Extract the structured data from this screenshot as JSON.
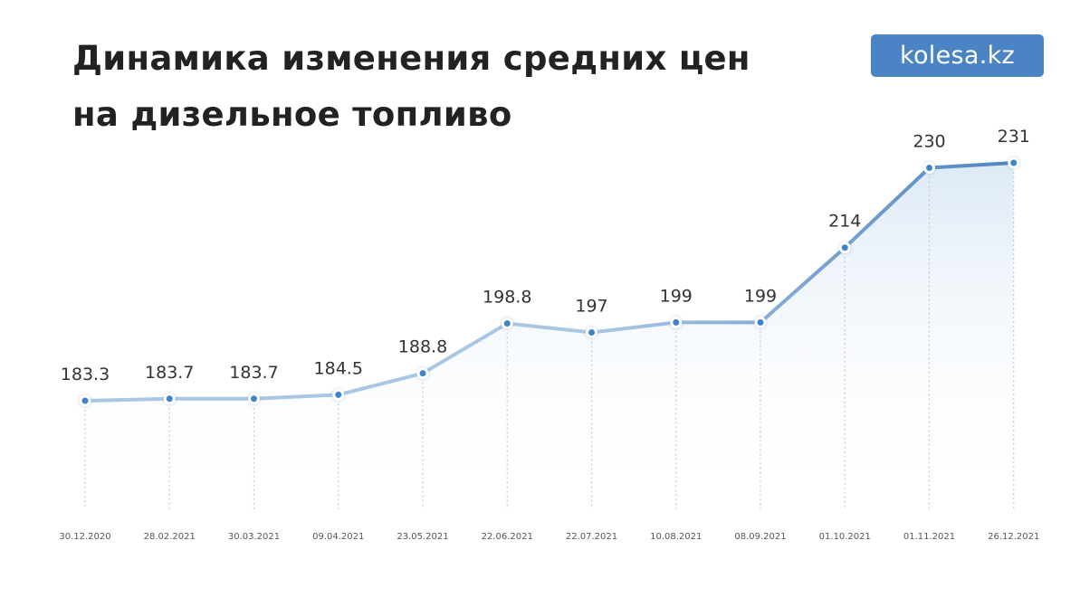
{
  "header": {
    "title_line1": "Динамика изменения средних цен",
    "title_line2": "на дизельное топливо",
    "logo_text": "kolesa.kz"
  },
  "colors": {
    "line_light": "#a9c7e4",
    "line_dark": "#4f86c1",
    "point_fill": "#3d85c6",
    "area_top": "#d9e7f5",
    "logo_bg": "#4a84c4"
  },
  "chart_data": {
    "type": "line",
    "title": "Динамика изменения средних цен на дизельное топливо",
    "xlabel": "",
    "ylabel": "",
    "categories": [
      "30.12.2020",
      "28.02.2021",
      "30.03.2021",
      "09.04.2021",
      "23.05.2021",
      "22.06.2021",
      "22.07.2021",
      "10.08.2021",
      "08.09.2021",
      "01.10.2021",
      "01.11.2021",
      "26.12.2021"
    ],
    "values": [
      183.3,
      183.7,
      183.7,
      184.5,
      188.8,
      198.8,
      197,
      199,
      199,
      214,
      230,
      231
    ],
    "value_labels": [
      "183.3",
      "183.7",
      "183.7",
      "184.5",
      "188.8",
      "198.8",
      "197",
      "199",
      "199",
      "214",
      "230",
      "231"
    ],
    "grid": "vertical dotted drop lines",
    "legend": "none",
    "area_fill": true
  }
}
